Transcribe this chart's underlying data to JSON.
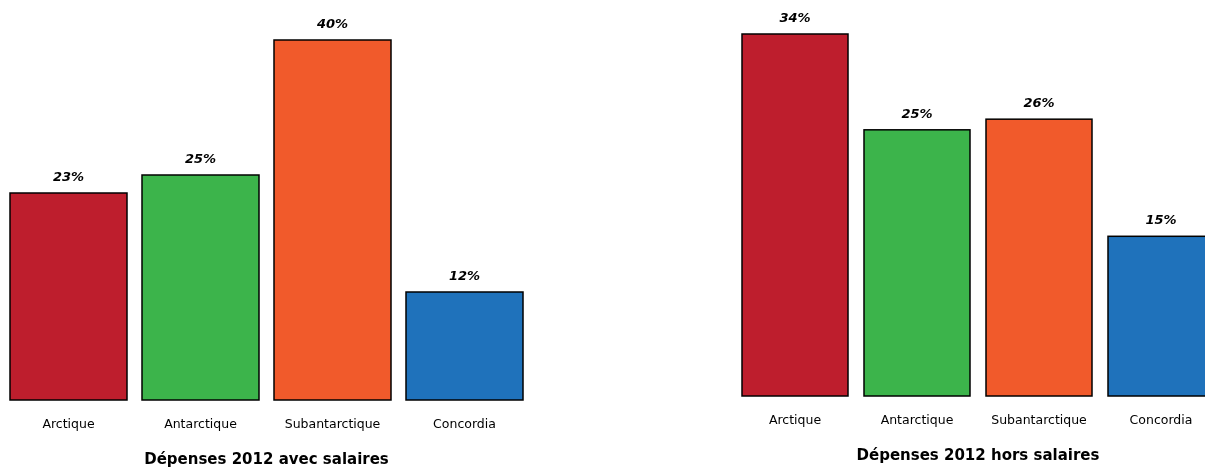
{
  "chart_data": [
    {
      "type": "bar",
      "title": "Dépenses 2012 avec salaires",
      "categories": [
        "Arctique",
        "Antarctique",
        "Subantarctique",
        "Concordia"
      ],
      "values": [
        23,
        25,
        40,
        12
      ],
      "value_labels": [
        "23%",
        "25%",
        "40%",
        "12%"
      ],
      "colors": [
        "#be1e2d",
        "#3cb44b",
        "#f15a2b",
        "#1f72bb"
      ]
    },
    {
      "type": "bar",
      "title": "Dépenses 2012 hors salaires",
      "categories": [
        "Arctique",
        "Antarctique",
        "Subantarctique",
        "Concordia"
      ],
      "values": [
        34,
        25,
        26,
        15
      ],
      "value_labels": [
        "34%",
        "25%",
        "26%",
        "15%"
      ],
      "colors": [
        "#be1e2d",
        "#3cb44b",
        "#f15a2b",
        "#1f72bb"
      ]
    }
  ]
}
